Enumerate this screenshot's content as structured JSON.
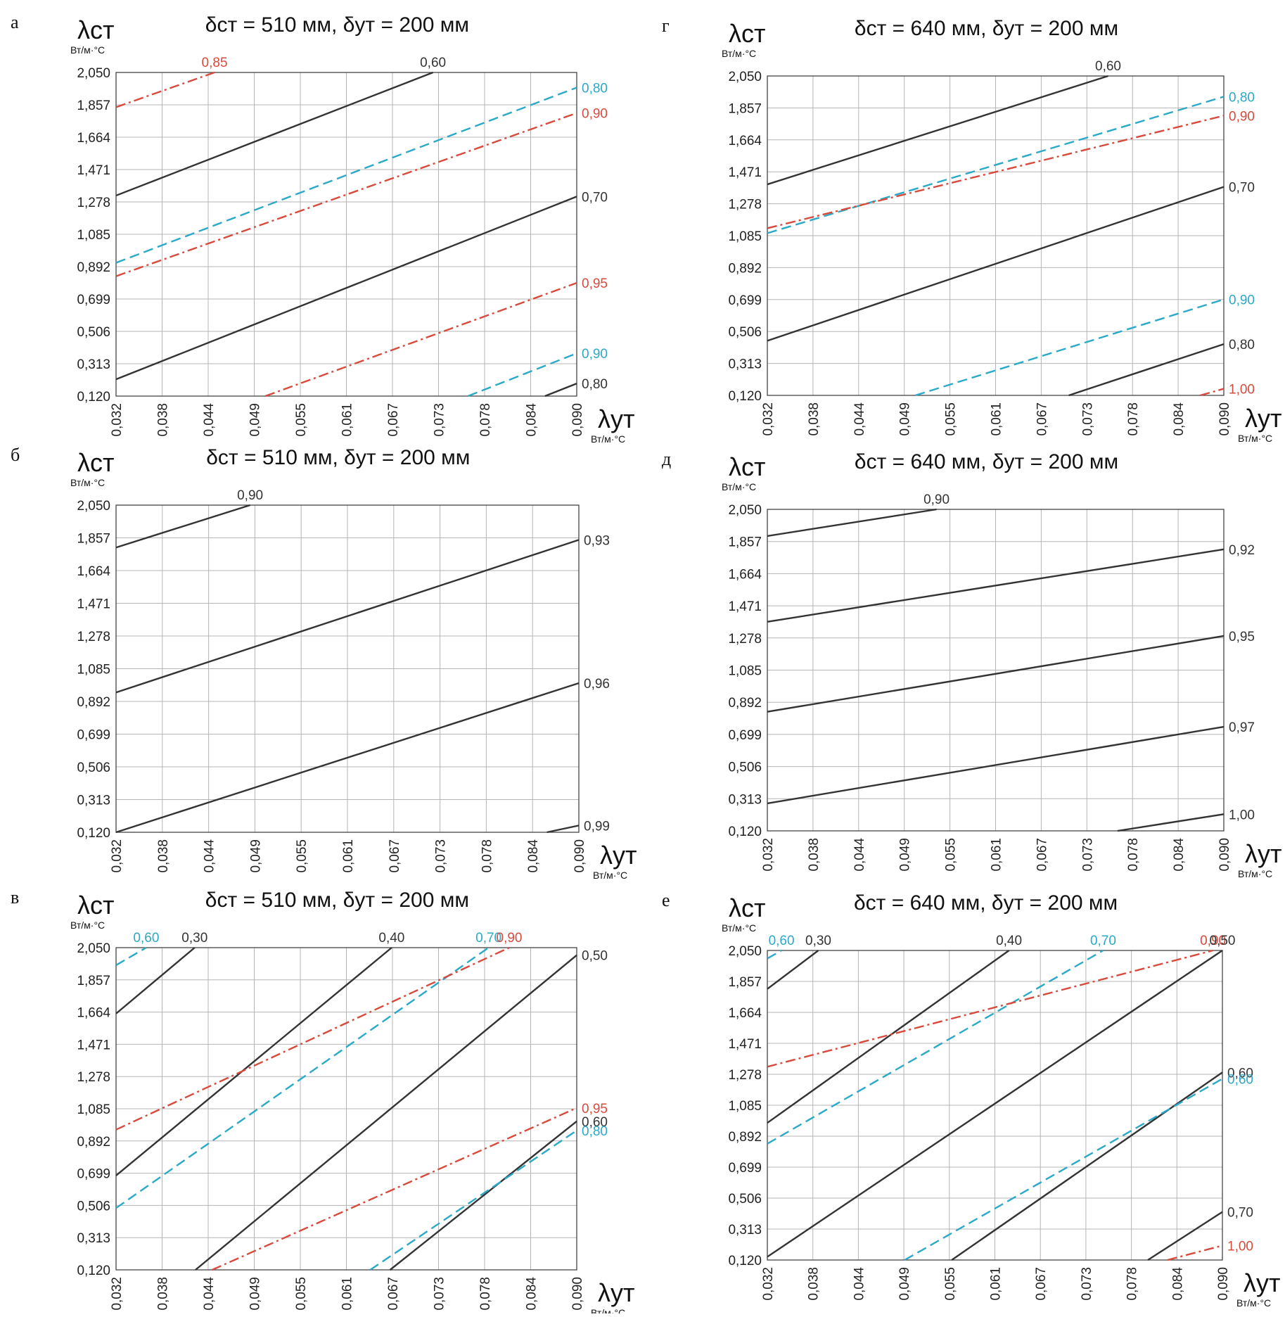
{
  "colors": {
    "black": "#333333",
    "blue": "#2aa9c9",
    "red": "#d84a3c",
    "grid": "#b5b5b5"
  },
  "x_ticks": [
    "0,032",
    "0,038",
    "0,044",
    "0,049",
    "0,055",
    "0,061",
    "0,067",
    "0,073",
    "0,078",
    "0,084",
    "0,090"
  ],
  "y_ticks": [
    "0,120",
    "0,313",
    "0,506",
    "0,699",
    "0,892",
    "1,085",
    "1,278",
    "1,471",
    "1,664",
    "1,857",
    "2,050"
  ],
  "chart_data": [
    {
      "type": "line",
      "panel": "а",
      "title": "δст = 510 мм,  δут = 200 мм",
      "ylabel": "λст",
      "ylabel_unit": "Вт/м·°С",
      "xlabel": "λут",
      "xlabel_unit": "Вт/м·°С",
      "xlim": [
        0.032,
        0.09
      ],
      "ylim": [
        0.12,
        2.05
      ],
      "grid": true,
      "series": [
        {
          "name": "0,85",
          "color": "red",
          "style": "dashdot",
          "points": [
            [
              0.032,
              1.843
            ],
            [
              0.0444,
              2.05
            ]
          ]
        },
        {
          "name": "0,60",
          "color": "black",
          "style": "solid",
          "points": [
            [
              0.032,
              1.316
            ],
            [
              0.0719,
              2.05
            ]
          ]
        },
        {
          "name": "0,80",
          "color": "blue",
          "style": "dashed",
          "points": [
            [
              0.032,
              0.915
            ],
            [
              0.09,
              1.96
            ]
          ]
        },
        {
          "name": "0,90",
          "color": "red",
          "style": "dashdot",
          "points": [
            [
              0.032,
              0.835
            ],
            [
              0.09,
              1.808
            ]
          ]
        },
        {
          "name": "0,70",
          "color": "black",
          "style": "solid",
          "points": [
            [
              0.032,
              0.22
            ],
            [
              0.09,
              1.31
            ]
          ]
        },
        {
          "name": "0,95",
          "color": "red",
          "style": "dashdot",
          "points": [
            [
              0.0508,
              0.12
            ],
            [
              0.09,
              0.795
            ]
          ]
        },
        {
          "name": "0,90",
          "color": "blue",
          "style": "dashed",
          "points": [
            [
              0.0763,
              0.12
            ],
            [
              0.09,
              0.375
            ]
          ]
        },
        {
          "name": "0,80",
          "color": "black",
          "style": "solid",
          "points": [
            [
              0.086,
              0.12
            ],
            [
              0.09,
              0.195
            ]
          ]
        }
      ]
    },
    {
      "type": "line",
      "panel": "б",
      "title": "δст = 510 мм,  δут = 200 мм",
      "ylabel": "λст",
      "ylabel_unit": "Вт/м·°С",
      "xlabel": "λут",
      "xlabel_unit": "Вт/м·°С",
      "xlim": [
        0.032,
        0.09
      ],
      "ylim": [
        0.12,
        2.05
      ],
      "grid": true,
      "series": [
        {
          "name": "0,90",
          "color": "black",
          "style": "solid",
          "points": [
            [
              0.032,
              1.8
            ],
            [
              0.0488,
              2.05
            ]
          ]
        },
        {
          "name": "0,93",
          "color": "black",
          "style": "solid",
          "points": [
            [
              0.032,
              0.945
            ],
            [
              0.09,
              1.845
            ]
          ]
        },
        {
          "name": "0,96",
          "color": "black",
          "style": "solid",
          "points": [
            [
              0.032,
              0.12
            ],
            [
              0.09,
              1.0
            ]
          ]
        },
        {
          "name": "0,99",
          "color": "black",
          "style": "solid",
          "points": [
            [
              0.086,
              0.12
            ],
            [
              0.09,
              0.16
            ]
          ]
        }
      ]
    },
    {
      "type": "line",
      "panel": "в",
      "title": "δст = 510 мм,  δут = 200 мм",
      "ylabel": "λст",
      "ylabel_unit": "Вт/м·°С",
      "xlabel": "λут",
      "xlabel_unit": "Вт/м·°С",
      "xlim": [
        0.032,
        0.09
      ],
      "ylim": [
        0.12,
        2.05
      ],
      "grid": true,
      "series": [
        {
          "name": "0,60",
          "color": "blue",
          "style": "dashed",
          "points": [
            [
              0.032,
              1.945
            ],
            [
              0.0358,
              2.05
            ]
          ]
        },
        {
          "name": "0,30",
          "color": "black",
          "style": "solid",
          "points": [
            [
              0.032,
              1.655
            ],
            [
              0.0419,
              2.05
            ]
          ]
        },
        {
          "name": "0,40",
          "color": "black",
          "style": "solid",
          "points": [
            [
              0.032,
              0.685
            ],
            [
              0.0667,
              2.05
            ]
          ]
        },
        {
          "name": "0,70",
          "color": "blue",
          "style": "dashed",
          "points": [
            [
              0.032,
              0.49
            ],
            [
              0.0789,
              2.05
            ]
          ]
        },
        {
          "name": "0,90",
          "color": "red",
          "style": "dashdot",
          "points": [
            [
              0.032,
              0.96
            ],
            [
              0.0815,
              2.05
            ]
          ]
        },
        {
          "name": "0,50",
          "color": "black",
          "style": "solid",
          "points": [
            [
              0.042,
              0.12
            ],
            [
              0.09,
              2.005
            ]
          ]
        },
        {
          "name": "0,95",
          "color": "red",
          "style": "dashdot",
          "points": [
            [
              0.0441,
              0.12
            ],
            [
              0.09,
              1.09
            ]
          ]
        },
        {
          "name": "0,60",
          "color": "black",
          "style": "solid",
          "points": [
            [
              0.0665,
              0.12
            ],
            [
              0.09,
              1.01
            ]
          ]
        },
        {
          "name": "0,80",
          "color": "blue",
          "style": "dashed",
          "points": [
            [
              0.064,
              0.12
            ],
            [
              0.09,
              0.955
            ]
          ]
        }
      ]
    },
    {
      "type": "line",
      "panel": "г",
      "title": "δст = 640 мм,  δут = 200 мм",
      "ylabel": "λст",
      "ylabel_unit": "Вт/м·°С",
      "xlabel": "λут",
      "xlabel_unit": "Вт/м·°С",
      "xlim": [
        0.032,
        0.09
      ],
      "ylim": [
        0.12,
        2.05
      ],
      "grid": true,
      "series": [
        {
          "name": "0,60",
          "color": "black",
          "style": "solid",
          "points": [
            [
              0.032,
              1.395
            ],
            [
              0.0753,
              2.05
            ]
          ]
        },
        {
          "name": "0,80",
          "color": "blue",
          "style": "dashed",
          "points": [
            [
              0.032,
              1.1
            ],
            [
              0.09,
              1.925
            ]
          ]
        },
        {
          "name": "0,90",
          "color": "red",
          "style": "dashdot",
          "points": [
            [
              0.032,
              1.13
            ],
            [
              0.09,
              1.81
            ]
          ]
        },
        {
          "name": "0,70",
          "color": "black",
          "style": "solid",
          "points": [
            [
              0.032,
              0.45
            ],
            [
              0.09,
              1.38
            ]
          ]
        },
        {
          "name": "0,90",
          "color": "blue",
          "style": "dashed",
          "points": [
            [
              0.0508,
              0.12
            ],
            [
              0.09,
              0.7
            ]
          ]
        },
        {
          "name": "0,80",
          "color": "black",
          "style": "solid",
          "points": [
            [
              0.0703,
              0.12
            ],
            [
              0.09,
              0.43
            ]
          ]
        },
        {
          "name": "1,00",
          "color": "red",
          "style": "dashdot",
          "points": [
            [
              0.087,
              0.12
            ],
            [
              0.09,
              0.16
            ]
          ]
        }
      ]
    },
    {
      "type": "line",
      "panel": "д",
      "title": "δст = 640 мм,  δут = 200 мм",
      "ylabel": "λст",
      "ylabel_unit": "Вт/м·°С",
      "xlabel": "λут",
      "xlabel_unit": "Вт/м·°С",
      "xlim": [
        0.032,
        0.09
      ],
      "ylim": [
        0.12,
        2.05
      ],
      "grid": true,
      "series": [
        {
          "name": "0,90",
          "color": "black",
          "style": "solid",
          "points": [
            [
              0.032,
              1.89
            ],
            [
              0.0535,
              2.05
            ]
          ]
        },
        {
          "name": "0,92",
          "color": "black",
          "style": "solid",
          "points": [
            [
              0.032,
              1.375
            ],
            [
              0.09,
              1.81
            ]
          ]
        },
        {
          "name": "0,95",
          "color": "black",
          "style": "solid",
          "points": [
            [
              0.032,
              0.835
            ],
            [
              0.09,
              1.29
            ]
          ]
        },
        {
          "name": "0,97",
          "color": "black",
          "style": "solid",
          "points": [
            [
              0.032,
              0.285
            ],
            [
              0.09,
              0.745
            ]
          ]
        },
        {
          "name": "1,00",
          "color": "black",
          "style": "solid",
          "points": [
            [
              0.0765,
              0.12
            ],
            [
              0.09,
              0.22
            ]
          ]
        }
      ]
    },
    {
      "type": "line",
      "panel": "е",
      "title": "δст = 640 мм,  δут = 200 мм",
      "ylabel": "λст",
      "ylabel_unit": "Вт/м·°С",
      "xlabel": "λут",
      "xlabel_unit": "Вт/м·°С",
      "xlim": [
        0.032,
        0.09
      ],
      "ylim": [
        0.12,
        2.05
      ],
      "grid": true,
      "series": [
        {
          "name": "0,60",
          "color": "blue",
          "style": "dashed",
          "points": [
            [
              0.032,
              2.0
            ],
            [
              0.0338,
              2.05
            ]
          ]
        },
        {
          "name": "0,30",
          "color": "black",
          "style": "solid",
          "points": [
            [
              0.032,
              1.81
            ],
            [
              0.0385,
              2.05
            ]
          ]
        },
        {
          "name": "0,40",
          "color": "black",
          "style": "solid",
          "points": [
            [
              0.032,
              0.975
            ],
            [
              0.0628,
              2.05
            ]
          ]
        },
        {
          "name": "0,70",
          "color": "blue",
          "style": "dashed",
          "points": [
            [
              0.032,
              0.845
            ],
            [
              0.0748,
              2.05
            ]
          ]
        },
        {
          "name": "0,90",
          "color": "red",
          "style": "dashdot",
          "points": [
            [
              0.032,
              1.325
            ],
            [
              0.0888,
              2.05
            ]
          ]
        },
        {
          "name": "0,50",
          "color": "black",
          "style": "solid",
          "points": [
            [
              0.032,
              0.14
            ],
            [
              0.09,
              2.05
            ]
          ]
        },
        {
          "name": "0,60",
          "color": "black",
          "style": "solid",
          "points": [
            [
              0.0555,
              0.12
            ],
            [
              0.09,
              1.29
            ]
          ]
        },
        {
          "name": "0,60",
          "color": "blue",
          "style": "dashed",
          "points": [
            [
              0.0495,
              0.12
            ],
            [
              0.09,
              1.25
            ]
          ]
        },
        {
          "name": "0,70",
          "color": "black",
          "style": "solid",
          "points": [
            [
              0.0805,
              0.12
            ],
            [
              0.09,
              0.42
            ]
          ]
        },
        {
          "name": "1,00",
          "color": "red",
          "style": "dashdot",
          "points": [
            [
              0.083,
              0.12
            ],
            [
              0.09,
              0.21
            ]
          ]
        }
      ]
    }
  ]
}
